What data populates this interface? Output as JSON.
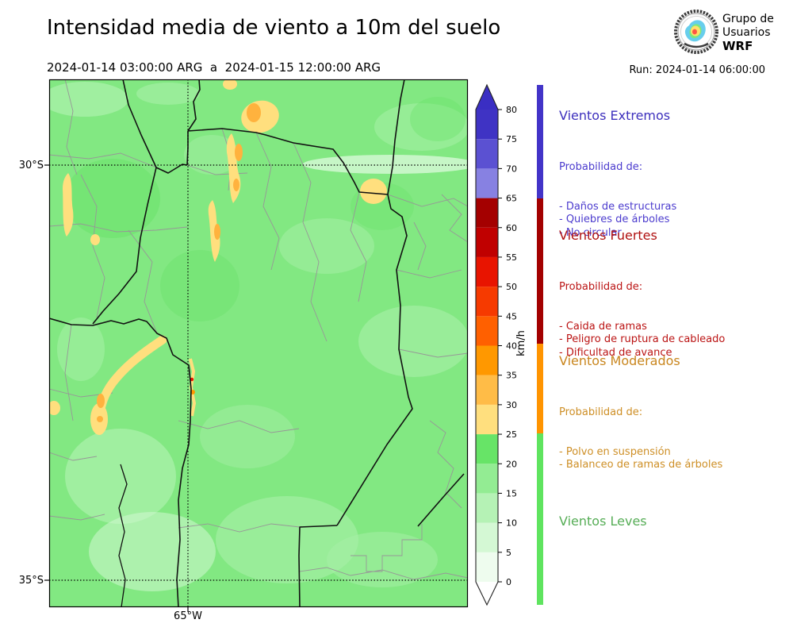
{
  "header": {
    "title": "Intensidad media de viento a 10m del suelo",
    "date_range": "2024-01-14 03:00:00 ARG  a  2024-01-15 12:00:00 ARG",
    "run_label": "Run: 2024-01-14 06:00:00",
    "logo": {
      "icon": "globe-wreath-icon",
      "line1": "Grupo de",
      "line2": "Usuarios",
      "line3": "WRF"
    }
  },
  "map": {
    "lat_labels": [
      {
        "text": "30°S"
      },
      {
        "text": "35°S"
      }
    ],
    "lon_labels": [
      {
        "text": "65°W"
      }
    ],
    "palette": {
      "base": "#82e882",
      "dark": "#68e268",
      "light1": "#a8f0a8",
      "light2": "#d2f8d2",
      "yellow": "#ffdf7e",
      "orange": "#ffb23e",
      "deep_orange": "#ff9800",
      "red": "#e81400",
      "border": "#111111",
      "minor_border": "#979797"
    }
  },
  "colorbar": {
    "unit": "km/h",
    "min": 0,
    "max": 80,
    "ticks": [
      0,
      5,
      10,
      15,
      20,
      25,
      30,
      35,
      40,
      45,
      50,
      55,
      60,
      65,
      70,
      75,
      80
    ],
    "bands": [
      {
        "from": 0,
        "to": 5,
        "color": "#eefcee"
      },
      {
        "from": 5,
        "to": 10,
        "color": "#d4f8d4"
      },
      {
        "from": 10,
        "to": 15,
        "color": "#b5f2b5"
      },
      {
        "from": 15,
        "to": 20,
        "color": "#93ec93"
      },
      {
        "from": 20,
        "to": 25,
        "color": "#67e467"
      },
      {
        "from": 25,
        "to": 30,
        "color": "#ffdf7e"
      },
      {
        "from": 30,
        "to": 35,
        "color": "#ffbc47"
      },
      {
        "from": 35,
        "to": 40,
        "color": "#ff9800"
      },
      {
        "from": 40,
        "to": 45,
        "color": "#ff6000"
      },
      {
        "from": 45,
        "to": 50,
        "color": "#f63a00"
      },
      {
        "from": 50,
        "to": 55,
        "color": "#e81400"
      },
      {
        "from": 55,
        "to": 60,
        "color": "#c00000"
      },
      {
        "from": 60,
        "to": 65,
        "color": "#a40000"
      },
      {
        "from": 65,
        "to": 70,
        "color": "#8781e2"
      },
      {
        "from": 70,
        "to": 75,
        "color": "#5b51d2"
      },
      {
        "from": 75,
        "to": 80,
        "color": "#3f33c4"
      }
    ],
    "over_color": "#3a2ec3",
    "under_color": "#ffffff"
  },
  "legend": {
    "sections": [
      {
        "title": "Vientos Extremos",
        "title_color": "#3d30bd",
        "body_color": "#4b3bce",
        "bar_color": "#4334c8",
        "intro": "Probabilidad de:",
        "items": [
          "- Daños de estructuras",
          "- Quiebres de árboles",
          "- No circular"
        ]
      },
      {
        "title": "Vientos Fuertes",
        "title_color": "#b01111",
        "body_color": "#bb1414",
        "bar_color": "#a30000",
        "intro": "Probabilidad de:",
        "items": [
          "- Caida de ramas",
          "- Peligro de ruptura de cableado",
          "- Dificultad de avance"
        ]
      },
      {
        "title": "Vientos Moderados",
        "title_color": "#c9861e",
        "body_color": "#ce8f26",
        "bar_color": "#ff9400",
        "intro": "Probabilidad de:",
        "items": [
          "- Polvo en suspensión",
          "- Balanceo de ramas de árboles"
        ]
      },
      {
        "title": "Vientos Leves",
        "title_color": "#56ad56",
        "body_color": "#56ad56",
        "bar_color": "#5fe45f",
        "intro": "",
        "items": []
      }
    ]
  }
}
